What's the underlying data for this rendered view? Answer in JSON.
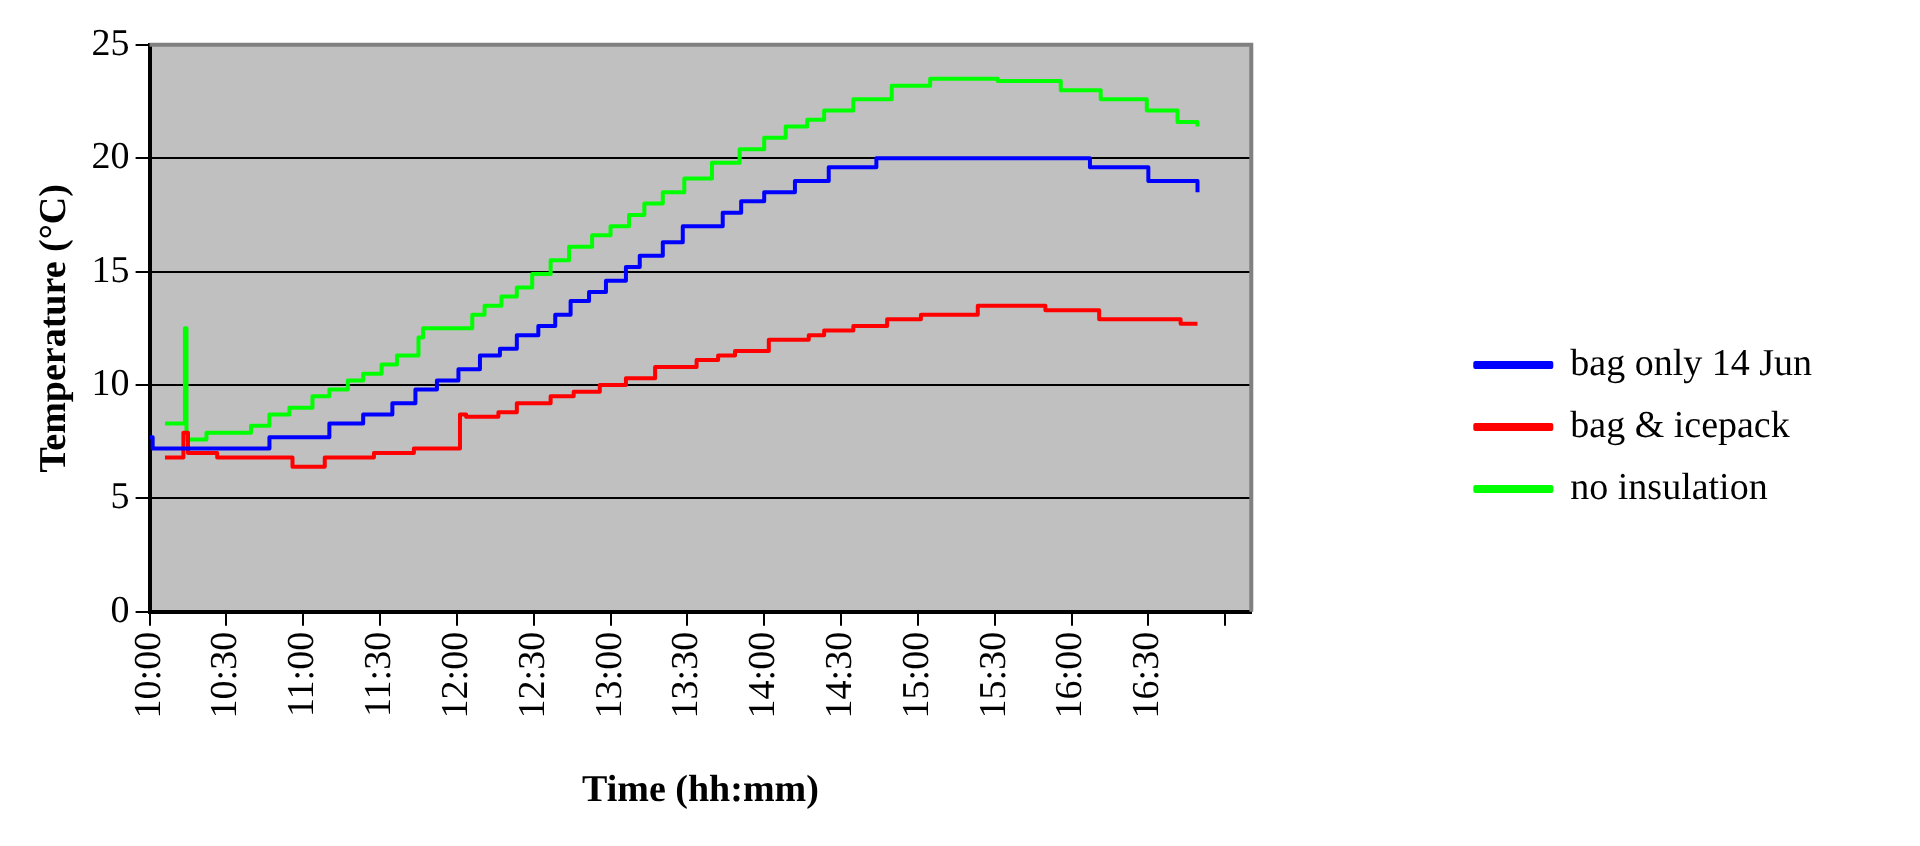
{
  "chart_data": {
    "type": "step",
    "xlabel": "Time (hh:mm)",
    "ylabel": "Temperature (°C)",
    "xlim": [
      10,
      17.17
    ],
    "ylim": [
      0,
      25
    ],
    "xticks": [
      {
        "value": 10,
        "label": "10:00"
      },
      {
        "value": 10.5,
        "label": "10:30"
      },
      {
        "value": 11,
        "label": "11:00"
      },
      {
        "value": 11.5,
        "label": "11:30"
      },
      {
        "value": 12,
        "label": "12:00"
      },
      {
        "value": 12.5,
        "label": "12:30"
      },
      {
        "value": 13,
        "label": "13:00"
      },
      {
        "value": 13.5,
        "label": "13:30"
      },
      {
        "value": 14,
        "label": "14:00"
      },
      {
        "value": 14.5,
        "label": "14:30"
      },
      {
        "value": 15,
        "label": "15:00"
      },
      {
        "value": 15.5,
        "label": "15:30"
      },
      {
        "value": 16,
        "label": "16:00"
      },
      {
        "value": 16.5,
        "label": "16:30"
      },
      {
        "value": 17,
        "label": null
      }
    ],
    "yticks": [
      0,
      5,
      10,
      15,
      20,
      25
    ],
    "grid": "y",
    "legend": "right",
    "marker": "none",
    "line_style": "solid",
    "series": [
      {
        "name": "bag only 14 Jun",
        "color": "#0000ff",
        "x": [
          10.0,
          10.02,
          10.78,
          11.17,
          11.39,
          11.58,
          11.73,
          11.87,
          12.01,
          12.15,
          12.28,
          12.39,
          12.53,
          12.64,
          12.74,
          12.86,
          12.97,
          13.1,
          13.19,
          13.34,
          13.47,
          13.73,
          13.85,
          14.0,
          14.2,
          14.42,
          14.73,
          16.12,
          16.5,
          16.82
        ],
        "values": [
          7.7,
          7.2,
          7.7,
          8.3,
          8.7,
          9.2,
          9.8,
          10.2,
          10.7,
          11.3,
          11.6,
          12.2,
          12.6,
          13.1,
          13.7,
          14.1,
          14.6,
          15.2,
          15.7,
          16.3,
          17.0,
          17.6,
          18.1,
          18.5,
          19.0,
          19.6,
          20.0,
          19.6,
          19.0,
          18.5
        ]
      },
      {
        "name": "bag & icepack",
        "color": "#ff0000",
        "x": [
          10.1,
          10.22,
          10.25,
          10.44,
          10.93,
          11.14,
          11.46,
          11.72,
          12.02,
          12.06,
          12.27,
          12.39,
          12.61,
          12.76,
          12.93,
          13.1,
          13.29,
          13.56,
          13.7,
          13.81,
          14.03,
          14.29,
          14.39,
          14.58,
          14.8,
          15.02,
          15.39,
          15.83,
          16.18,
          16.71,
          16.82
        ],
        "values": [
          6.8,
          7.9,
          7.0,
          6.8,
          6.4,
          6.8,
          7.0,
          7.2,
          8.7,
          8.6,
          8.8,
          9.2,
          9.5,
          9.7,
          10.0,
          10.3,
          10.8,
          11.1,
          11.3,
          11.5,
          12.0,
          12.2,
          12.4,
          12.6,
          12.9,
          13.1,
          13.5,
          13.3,
          12.9,
          12.7,
          12.7
        ]
      },
      {
        "name": "no insulation",
        "color": "#00ff00",
        "x": [
          10.1,
          10.23,
          10.24,
          10.37,
          10.66,
          10.78,
          10.91,
          11.06,
          11.17,
          11.29,
          11.39,
          11.51,
          11.61,
          11.75,
          11.78,
          12.1,
          12.18,
          12.29,
          12.39,
          12.49,
          12.61,
          12.73,
          12.88,
          13.0,
          13.12,
          13.22,
          13.34,
          13.48,
          13.66,
          13.84,
          14.0,
          14.14,
          14.28,
          14.39,
          14.58,
          14.83,
          15.08,
          15.52,
          15.93,
          16.19,
          16.49,
          16.69,
          16.82
        ],
        "values": [
          8.3,
          12.5,
          7.6,
          7.9,
          8.2,
          8.7,
          9.0,
          9.5,
          9.8,
          10.2,
          10.5,
          10.9,
          11.3,
          12.1,
          12.5,
          13.1,
          13.5,
          13.9,
          14.3,
          14.9,
          15.5,
          16.1,
          16.6,
          17.0,
          17.5,
          18.0,
          18.5,
          19.1,
          19.8,
          20.4,
          20.9,
          21.4,
          21.7,
          22.1,
          22.6,
          23.2,
          23.5,
          23.4,
          23.0,
          22.6,
          22.1,
          21.6,
          21.4
        ]
      }
    ]
  }
}
